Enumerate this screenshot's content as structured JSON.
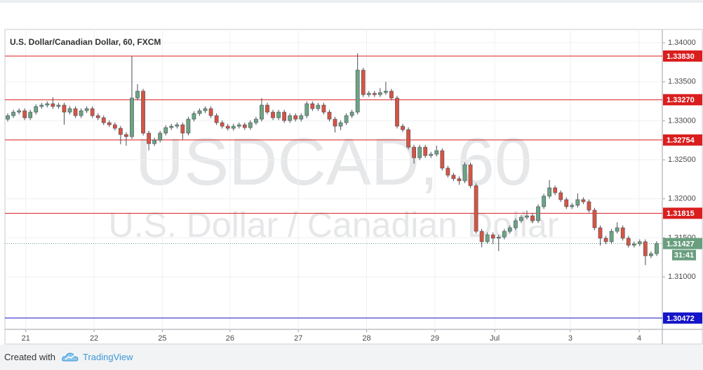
{
  "chart_data": {
    "type": "candlestick",
    "title": "U.S. Dollar/Canadian Dollar, 60, FXCM",
    "watermark": {
      "symbol": "USDCAD, 60",
      "description": "U.S. Dollar / Canadian Dollar"
    },
    "up_color": "#6ba583",
    "down_color": "#d75442",
    "wick_color": "#4a4e58",
    "grid": true,
    "xlim": [
      0,
      116.5
    ],
    "xticks": [
      {
        "value": 3.7,
        "label": "21"
      },
      {
        "value": 15.8,
        "label": "22"
      },
      {
        "value": 27.9,
        "label": "25"
      },
      {
        "value": 39.9,
        "label": "26"
      },
      {
        "value": 52.0,
        "label": "27"
      },
      {
        "value": 64.1,
        "label": "28"
      },
      {
        "value": 76.2,
        "label": "29"
      },
      {
        "value": 86.8,
        "label": "Jul"
      },
      {
        "value": 100.2,
        "label": "3"
      },
      {
        "value": 112.4,
        "label": "4"
      }
    ],
    "ylim": [
      1.30327,
      1.34171
    ],
    "yticks": [
      {
        "value": 1.34,
        "label": "1.34000"
      },
      {
        "value": 1.335,
        "label": "1.33500"
      },
      {
        "value": 1.33,
        "label": "1.33000"
      },
      {
        "value": 1.325,
        "label": "1.32500"
      },
      {
        "value": 1.32,
        "label": "1.32000"
      },
      {
        "value": 1.315,
        "label": "1.31500"
      },
      {
        "value": 1.31,
        "label": "1.31000"
      }
    ],
    "price_lines": [
      {
        "value": 1.3383,
        "label": "1.33830",
        "color": "#d91e1e"
      },
      {
        "value": 1.3327,
        "label": "1.33270",
        "color": "#d91e1e"
      },
      {
        "value": 1.32754,
        "label": "1.32754",
        "color": "#d91e1e"
      },
      {
        "value": 1.31815,
        "label": "1.31815",
        "color": "#d91e1e"
      },
      {
        "value": 1.30472,
        "label": "1.30472",
        "color": "#1414c8"
      }
    ],
    "last_price": {
      "value": 1.31427,
      "label": "1.31427",
      "countdown": "31:41",
      "color": "#6a9e7f"
    },
    "ohlc": [
      [
        1.3302,
        1.33096,
        1.3299,
        1.33066
      ],
      [
        1.33066,
        1.33141,
        1.33036,
        1.33111
      ],
      [
        1.33111,
        1.33159,
        1.33081,
        1.33129
      ],
      [
        1.33129,
        1.33159,
        1.33009,
        1.33039
      ],
      [
        1.33039,
        1.33141,
        1.33009,
        1.33111
      ],
      [
        1.33111,
        1.33213,
        1.33081,
        1.33183
      ],
      [
        1.33183,
        1.33231,
        1.33153,
        1.33201
      ],
      [
        1.33201,
        1.33249,
        1.33171,
        1.33219
      ],
      [
        1.33219,
        1.333,
        1.33153,
        1.33183
      ],
      [
        1.33183,
        1.33231,
        1.33153,
        1.33201
      ],
      [
        1.33201,
        1.33231,
        1.3295,
        1.33111
      ],
      [
        1.33111,
        1.33186,
        1.33081,
        1.33156
      ],
      [
        1.33156,
        1.33186,
        1.33036,
        1.33066
      ],
      [
        1.33066,
        1.33159,
        1.33036,
        1.33129
      ],
      [
        1.33129,
        1.33186,
        1.33099,
        1.33156
      ],
      [
        1.33156,
        1.33186,
        1.33036,
        1.33066
      ],
      [
        1.33066,
        1.33096,
        1.33009,
        1.33039
      ],
      [
        1.33039,
        1.33069,
        1.32946,
        1.32976
      ],
      [
        1.32976,
        1.33006,
        1.32919,
        1.32949
      ],
      [
        1.32949,
        1.32979,
        1.32874,
        1.32904
      ],
      [
        1.32904,
        1.32934,
        1.327,
        1.32824
      ],
      [
        1.32824,
        1.32854,
        1.3268,
        1.32797
      ],
      [
        1.32797,
        1.33829,
        1.32767,
        1.33291
      ],
      [
        1.33291,
        1.3347,
        1.33261,
        1.3338
      ],
      [
        1.3338,
        1.3341,
        1.32812,
        1.32842
      ],
      [
        1.32842,
        1.32872,
        1.3262,
        1.32707
      ],
      [
        1.32707,
        1.32782,
        1.32677,
        1.32752
      ],
      [
        1.32752,
        1.32872,
        1.32722,
        1.32842
      ],
      [
        1.32842,
        1.32943,
        1.32812,
        1.32913
      ],
      [
        1.32913,
        1.32961,
        1.32883,
        1.32931
      ],
      [
        1.32931,
        1.32979,
        1.32901,
        1.32949
      ],
      [
        1.32949,
        1.32979,
        1.3276,
        1.32842
      ],
      [
        1.32842,
        1.33051,
        1.32812,
        1.33021
      ],
      [
        1.33021,
        1.33123,
        1.32991,
        1.33093
      ],
      [
        1.33093,
        1.33159,
        1.33063,
        1.33129
      ],
      [
        1.33129,
        1.33186,
        1.33099,
        1.33156
      ],
      [
        1.33156,
        1.33186,
        1.33036,
        1.33066
      ],
      [
        1.33066,
        1.33096,
        1.32946,
        1.32976
      ],
      [
        1.32976,
        1.33006,
        1.32901,
        1.32931
      ],
      [
        1.32931,
        1.32961,
        1.32874,
        1.32904
      ],
      [
        1.32904,
        1.32961,
        1.32874,
        1.32931
      ],
      [
        1.32931,
        1.32979,
        1.32901,
        1.32949
      ],
      [
        1.32949,
        1.32979,
        1.32883,
        1.32913
      ],
      [
        1.32913,
        1.33006,
        1.32883,
        1.32976
      ],
      [
        1.32976,
        1.33051,
        1.32946,
        1.33021
      ],
      [
        1.33021,
        1.3329,
        1.32991,
        1.33201
      ],
      [
        1.33201,
        1.33231,
        1.33081,
        1.33111
      ],
      [
        1.33111,
        1.33141,
        1.33009,
        1.33039
      ],
      [
        1.33039,
        1.33141,
        1.33009,
        1.33111
      ],
      [
        1.33111,
        1.33141,
        1.32973,
        1.33003
      ],
      [
        1.33003,
        1.33096,
        1.32973,
        1.33066
      ],
      [
        1.33066,
        1.33096,
        1.32991,
        1.33021
      ],
      [
        1.33021,
        1.33096,
        1.32991,
        1.33066
      ],
      [
        1.33066,
        1.33249,
        1.33036,
        1.33219
      ],
      [
        1.33219,
        1.33249,
        1.33126,
        1.33156
      ],
      [
        1.33156,
        1.33231,
        1.33126,
        1.33201
      ],
      [
        1.33201,
        1.33231,
        1.33081,
        1.33111
      ],
      [
        1.33111,
        1.33141,
        1.32991,
        1.33021
      ],
      [
        1.33021,
        1.33051,
        1.3285,
        1.32931
      ],
      [
        1.32931,
        1.33006,
        1.3288,
        1.32976
      ],
      [
        1.32976,
        1.33096,
        1.32946,
        1.33066
      ],
      [
        1.33066,
        1.33141,
        1.33036,
        1.33111
      ],
      [
        1.33111,
        1.33865,
        1.33081,
        1.3365
      ],
      [
        1.3365,
        1.3368,
        1.33305,
        1.33335
      ],
      [
        1.33335,
        1.33383,
        1.33305,
        1.33353
      ],
      [
        1.33353,
        1.33383,
        1.33305,
        1.33335
      ],
      [
        1.33335,
        1.3342,
        1.33305,
        1.33362
      ],
      [
        1.33362,
        1.335,
        1.33332,
        1.3338
      ],
      [
        1.3338,
        1.3341,
        1.33261,
        1.33291
      ],
      [
        1.33291,
        1.33321,
        1.32901,
        1.32931
      ],
      [
        1.32931,
        1.32961,
        1.32856,
        1.32886
      ],
      [
        1.32886,
        1.32916,
        1.32632,
        1.32662
      ],
      [
        1.32662,
        1.32692,
        1.3245,
        1.32527
      ],
      [
        1.32527,
        1.32692,
        1.32497,
        1.32662
      ],
      [
        1.32662,
        1.32692,
        1.32524,
        1.32554
      ],
      [
        1.32554,
        1.32602,
        1.32524,
        1.32572
      ],
      [
        1.32572,
        1.3268,
        1.32542,
        1.32617
      ],
      [
        1.32617,
        1.32647,
        1.32363,
        1.32393
      ],
      [
        1.32393,
        1.32423,
        1.32273,
        1.32303
      ],
      [
        1.32303,
        1.32333,
        1.32228,
        1.32258
      ],
      [
        1.32258,
        1.32288,
        1.3218,
        1.32231
      ],
      [
        1.32231,
        1.32467,
        1.32201,
        1.32437
      ],
      [
        1.32437,
        1.32467,
        1.32138,
        1.32168
      ],
      [
        1.32168,
        1.32198,
        1.31554,
        1.31584
      ],
      [
        1.31584,
        1.31614,
        1.3138,
        1.3145
      ],
      [
        1.3145,
        1.31569,
        1.3142,
        1.31539
      ],
      [
        1.31539,
        1.31569,
        1.3142,
        1.31495
      ],
      [
        1.31495,
        1.3154,
        1.3133,
        1.3151
      ],
      [
        1.3151,
        1.31614,
        1.3148,
        1.31584
      ],
      [
        1.31584,
        1.31659,
        1.31554,
        1.31629
      ],
      [
        1.31629,
        1.31749,
        1.31599,
        1.31719
      ],
      [
        1.31719,
        1.31794,
        1.31689,
        1.31764
      ],
      [
        1.31764,
        1.3185,
        1.31734,
        1.31782
      ],
      [
        1.31782,
        1.31812,
        1.31689,
        1.31719
      ],
      [
        1.31719,
        1.31929,
        1.31689,
        1.31899
      ],
      [
        1.31899,
        1.32064,
        1.31869,
        1.32034
      ],
      [
        1.32034,
        1.3224,
        1.32004,
        1.32141
      ],
      [
        1.32141,
        1.32171,
        1.32048,
        1.32078
      ],
      [
        1.32078,
        1.32108,
        1.31959,
        1.31989
      ],
      [
        1.31989,
        1.32019,
        1.31869,
        1.31899
      ],
      [
        1.31899,
        1.31947,
        1.31869,
        1.31917
      ],
      [
        1.31917,
        1.3207,
        1.31887,
        1.31989
      ],
      [
        1.31989,
        1.32019,
        1.31932,
        1.31962
      ],
      [
        1.31962,
        1.31992,
        1.31824,
        1.31854
      ],
      [
        1.31854,
        1.31884,
        1.31599,
        1.31629
      ],
      [
        1.31629,
        1.31659,
        1.314,
        1.31495
      ],
      [
        1.31495,
        1.31525,
        1.3142,
        1.3145
      ],
      [
        1.3145,
        1.31614,
        1.3142,
        1.31584
      ],
      [
        1.31584,
        1.317,
        1.31554,
        1.31629
      ],
      [
        1.31629,
        1.31659,
        1.31465,
        1.31495
      ],
      [
        1.31495,
        1.31525,
        1.31375,
        1.31405
      ],
      [
        1.31405,
        1.31453,
        1.31375,
        1.31423
      ],
      [
        1.31423,
        1.3148,
        1.31393,
        1.3145
      ],
      [
        1.3145,
        1.3148,
        1.3115,
        1.3127
      ],
      [
        1.3127,
        1.31327,
        1.3124,
        1.31297
      ],
      [
        1.31297,
        1.31457,
        1.31267,
        1.31427
      ]
    ]
  },
  "footer": {
    "created_with": "Created with",
    "brand": "TradingView"
  }
}
